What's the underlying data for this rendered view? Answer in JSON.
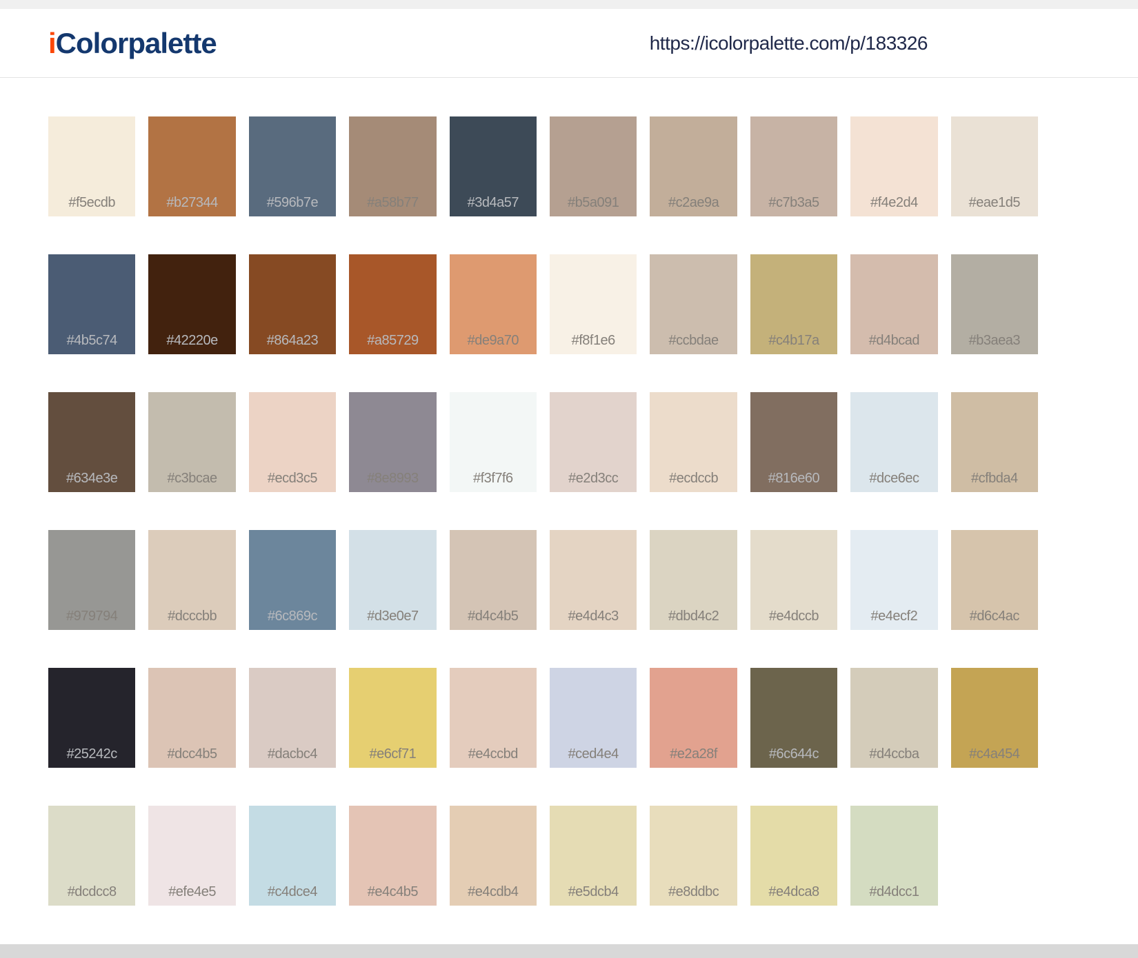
{
  "header": {
    "logo_prefix": "i",
    "logo_text": "Colorpalette",
    "url": "https://icolorpalette.com/p/183326"
  },
  "brand": {
    "logo_accent_color": "#fb4708",
    "logo_text_color": "#14386e",
    "url_text_color": "#20294a"
  },
  "palette": {
    "label_color_on_light": "#85807a",
    "label_color_on_dark": "#b7b9bd",
    "rows": [
      [
        "#f5ecdb",
        "#b27344",
        "#596b7e",
        "#a58b77",
        "#3d4a57",
        "#b5a091",
        "#c2ae9a",
        "#c7b3a5",
        "#f4e2d4",
        "#eae1d5"
      ],
      [
        "#4b5c74",
        "#42220e",
        "#864a23",
        "#a85729",
        "#de9a70",
        "#f8f1e6",
        "#ccbdae",
        "#c4b17a",
        "#d4bcad",
        "#b3aea3"
      ],
      [
        "#634e3e",
        "#c3bcae",
        "#ecd3c5",
        "#8e8993",
        "#f3f7f6",
        "#e2d3cc",
        "#ecdccb",
        "#816e60",
        "#dce6ec",
        "#cfbda4"
      ],
      [
        "#979794",
        "#dcccbb",
        "#6c869c",
        "#d3e0e7",
        "#d4c4b5",
        "#e4d4c3",
        "#dbd4c2",
        "#e4dccb",
        "#e4ecf2",
        "#d6c4ac"
      ],
      [
        "#25242c",
        "#dcc4b5",
        "#dacbc4",
        "#e6cf71",
        "#e4ccbd",
        "#ced4e4",
        "#e2a28f",
        "#6c644c",
        "#d4ccba",
        "#c4a454"
      ],
      [
        "#dcdcc8",
        "#efe4e5",
        "#c4dce4",
        "#e4c4b5",
        "#e4cdb4",
        "#e5dcb4",
        "#e8ddbc",
        "#e4dca8",
        "#d4dcc1"
      ]
    ]
  }
}
